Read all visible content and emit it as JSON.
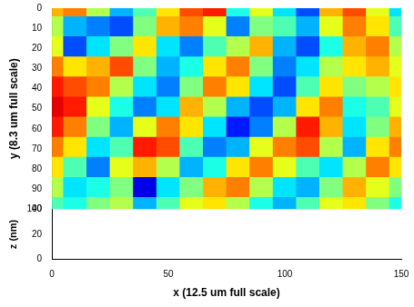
{
  "chart_data": {
    "type": "heatmap",
    "x_label": "x (12.5 um full scale)",
    "y_label": "y (8.3 um full scale)",
    "z_label": "z (nm)",
    "x": [
      0,
      10,
      20,
      30,
      40,
      50,
      60,
      70,
      80,
      90,
      100,
      110,
      120,
      130,
      140,
      150
    ],
    "y": [
      0,
      10,
      20,
      30,
      40,
      50,
      60,
      70,
      80,
      90,
      100
    ],
    "z": [
      [
        28,
        30,
        22,
        12,
        18,
        26,
        32,
        34,
        16,
        24,
        14,
        8,
        28,
        32,
        24,
        14
      ],
      [
        22,
        12,
        10,
        8,
        20,
        28,
        30,
        24,
        10,
        20,
        18,
        12,
        24,
        30,
        26,
        18
      ],
      [
        24,
        8,
        14,
        20,
        26,
        14,
        10,
        18,
        22,
        28,
        12,
        8,
        16,
        28,
        30,
        22
      ],
      [
        30,
        26,
        28,
        32,
        20,
        12,
        16,
        26,
        30,
        20,
        10,
        14,
        22,
        26,
        28,
        24
      ],
      [
        34,
        32,
        30,
        22,
        14,
        10,
        20,
        30,
        26,
        14,
        8,
        18,
        26,
        20,
        22,
        26
      ],
      [
        36,
        34,
        24,
        16,
        10,
        14,
        28,
        22,
        12,
        8,
        12,
        26,
        30,
        16,
        18,
        24
      ],
      [
        34,
        30,
        20,
        12,
        24,
        30,
        26,
        14,
        6,
        10,
        22,
        34,
        28,
        14,
        20,
        28
      ],
      [
        30,
        26,
        14,
        18,
        34,
        32,
        18,
        10,
        12,
        24,
        30,
        32,
        22,
        12,
        26,
        30
      ],
      [
        26,
        18,
        10,
        24,
        28,
        22,
        12,
        16,
        26,
        30,
        24,
        18,
        14,
        22,
        30,
        26
      ],
      [
        22,
        14,
        16,
        20,
        4,
        14,
        20,
        28,
        30,
        22,
        14,
        12,
        20,
        28,
        24,
        20
      ],
      [
        18,
        16,
        20,
        22,
        12,
        18,
        24,
        26,
        22,
        16,
        12,
        18,
        24,
        26,
        20,
        16
      ]
    ],
    "xlim": [
      0,
      150
    ],
    "xticks": [
      0,
      50,
      100,
      150
    ],
    "ylim": [
      0,
      100
    ],
    "yticks": [
      0,
      10,
      20,
      30,
      40,
      50,
      60,
      70,
      80,
      90,
      100
    ],
    "zlim": [
      0,
      40
    ],
    "zticks": [
      0,
      20,
      40
    ],
    "grid": false
  }
}
